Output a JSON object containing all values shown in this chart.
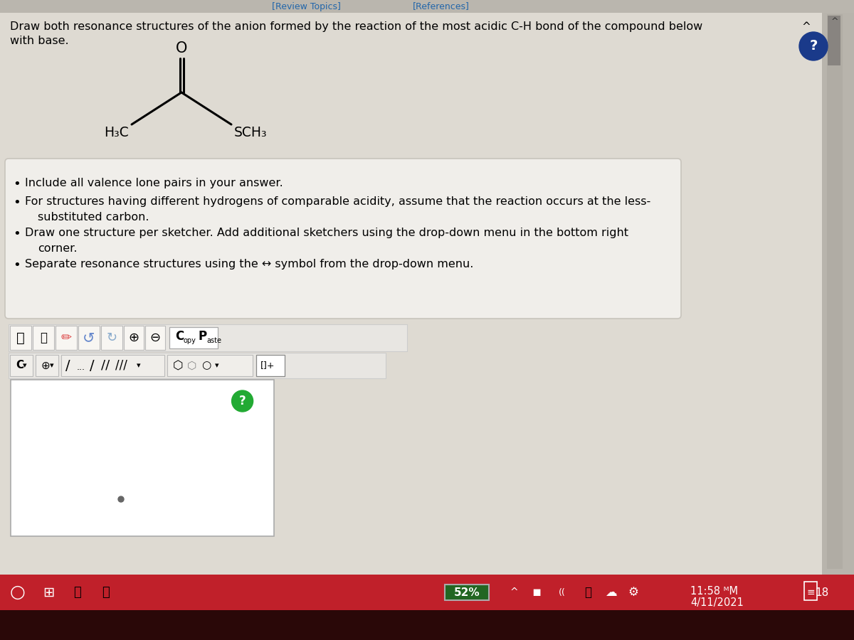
{
  "bg_main": "#ccc8c0",
  "bg_content": "#dedad2",
  "bg_white_box": "#f0eeea",
  "bg_toolbar": "#e8e6e2",
  "bg_sketcher": "#ffffff",
  "bg_taskbar": "#c0202a",
  "bg_taskbar_bottom": "#2a0808",
  "title_bar_color": "#bab6ae",
  "title_text": "[Review Topics]",
  "references_text": "[References]",
  "q_line1": "Draw both resonance structures of the anion formed by the reaction of the most acidic C-H bond of the compound below",
  "q_line2": "with base.",
  "b1": "Include all valence lone pairs in your answer.",
  "b2a": "For structures having different hydrogens of comparable acidity, assume that the reaction occurs at the less-",
  "b2b": "substituted carbon.",
  "b3a": "Draw one structure per sketcher. Add additional sketchers using the drop-down menu in the bottom right",
  "b3b": "corner.",
  "b4": "Separate resonance structures using the ↔ symbol from the drop-down menu.",
  "time_text": "11:58 ᴹM",
  "date_text": "4/11/2021",
  "battery_text": "52%",
  "right_panel_bg": "#b8b4ac",
  "scrollbar_track": "#b0aca4",
  "scrollbar_thumb": "#888480"
}
